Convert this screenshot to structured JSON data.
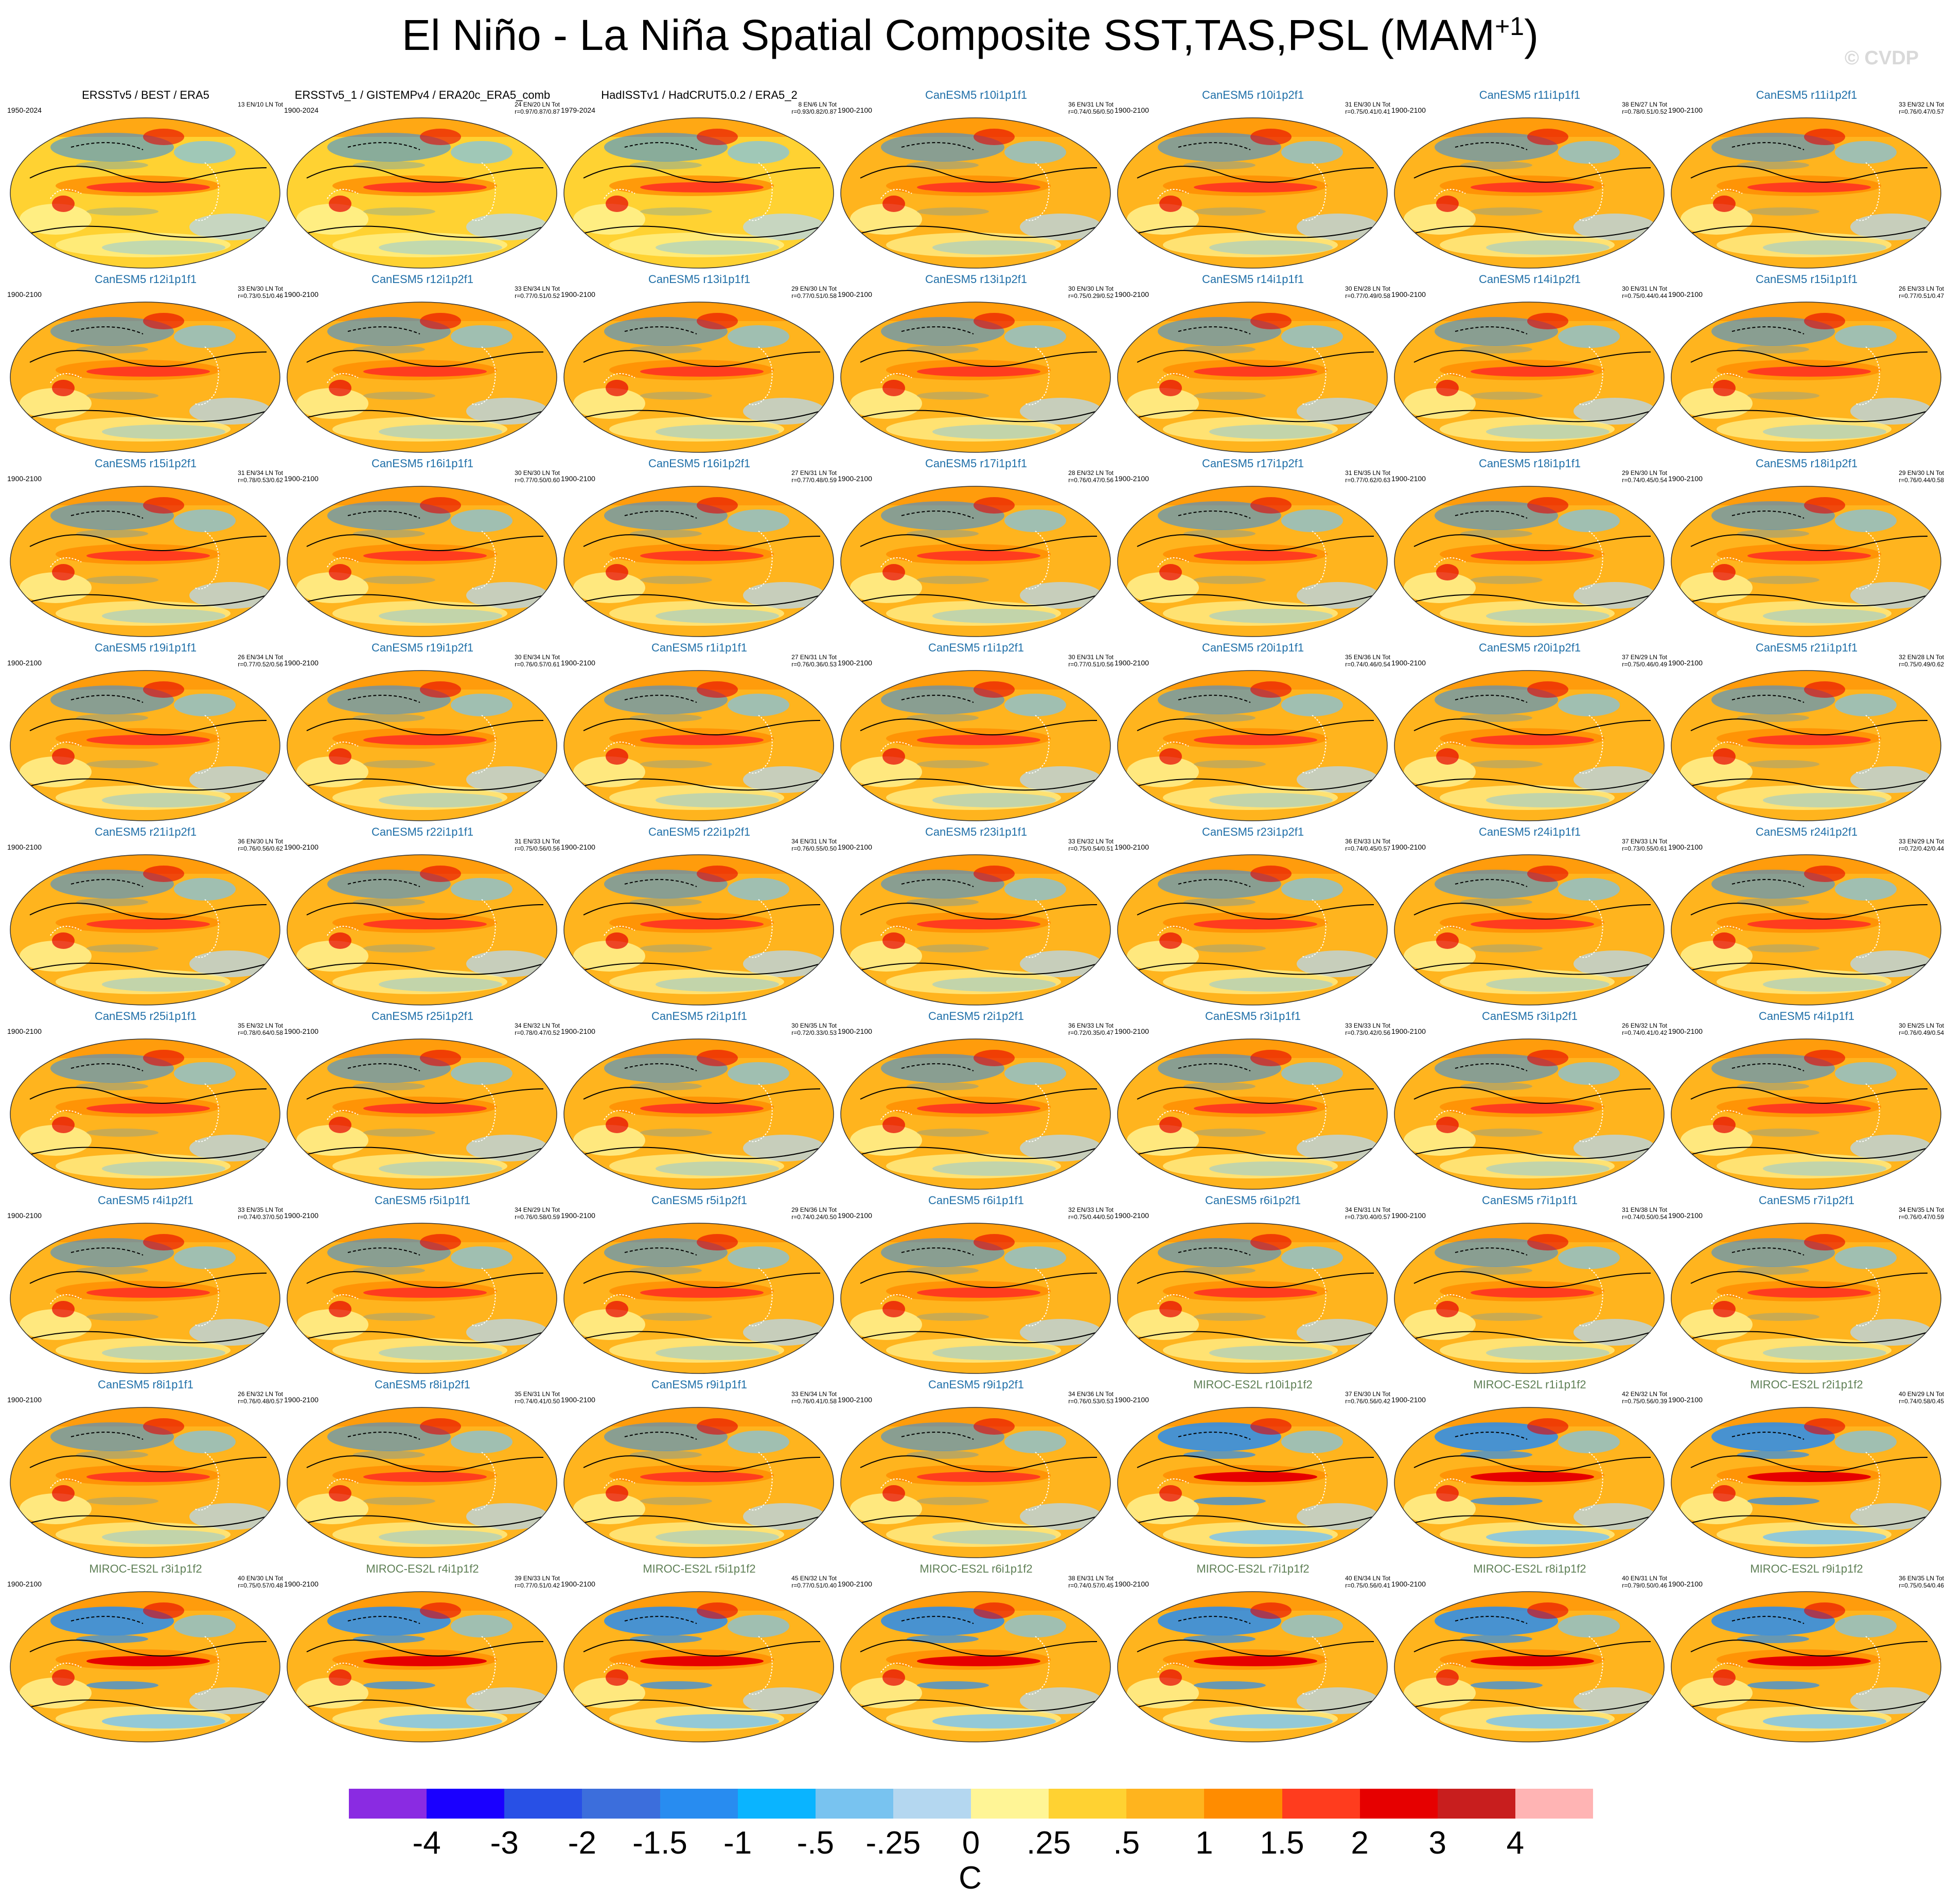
{
  "title": {
    "main": "El Niño - La Niña Spatial Composite SST,TAS,PSL (MAM",
    "sup": "+1",
    "end": ")"
  },
  "watermark": "© CVDP",
  "panels": [
    {
      "title": "ERSSTv5 / BEST / ERA5",
      "years": "1950-2024",
      "stats1": "13 EN/10 LN Tot",
      "stats2": "",
      "src": "obs"
    },
    {
      "title": "ERSSTv5_1 / GISTEMPv4 / ERA20c_ERA5_comb",
      "years": "1900-2024",
      "stats1": "24 EN/20 LN Tot",
      "stats2": "r=0.97/0.87/0.87",
      "src": "obs"
    },
    {
      "title": "HadISSTv1 / HadCRUT5.0.2 / ERA5_2",
      "years": "1979-2024",
      "stats1": "8 EN/6 LN Tot",
      "stats2": "r=0.93/0.82/0.87",
      "src": "obs"
    },
    {
      "title": "CanESM5 r10i1p1f1",
      "years": "1900-2100",
      "stats1": "36 EN/31 LN Tot",
      "stats2": "r=0.74/0.56/0.50",
      "src": "can"
    },
    {
      "title": "CanESM5 r10i1p2f1",
      "years": "1900-2100",
      "stats1": "31 EN/30 LN Tot",
      "stats2": "r=0.75/0.41/0.41",
      "src": "can"
    },
    {
      "title": "CanESM5 r11i1p1f1",
      "years": "1900-2100",
      "stats1": "38 EN/27 LN Tot",
      "stats2": "r=0.78/0.51/0.52",
      "src": "can"
    },
    {
      "title": "CanESM5 r11i1p2f1",
      "years": "1900-2100",
      "stats1": "33 EN/32 LN Tot",
      "stats2": "r=0.76/0.47/0.57",
      "src": "can"
    },
    {
      "title": "CanESM5 r12i1p1f1",
      "years": "1900-2100",
      "stats1": "33 EN/30 LN Tot",
      "stats2": "r=0.73/0.51/0.46",
      "src": "can"
    },
    {
      "title": "CanESM5 r12i1p2f1",
      "years": "1900-2100",
      "stats1": "33 EN/34 LN Tot",
      "stats2": "r=0.77/0.51/0.52",
      "src": "can"
    },
    {
      "title": "CanESM5 r13i1p1f1",
      "years": "1900-2100",
      "stats1": "29 EN/30 LN Tot",
      "stats2": "r=0.77/0.51/0.58",
      "src": "can"
    },
    {
      "title": "CanESM5 r13i1p2f1",
      "years": "1900-2100",
      "stats1": "30 EN/30 LN Tot",
      "stats2": "r=0.75/0.29/0.52",
      "src": "can"
    },
    {
      "title": "CanESM5 r14i1p1f1",
      "years": "1900-2100",
      "stats1": "30 EN/28 LN Tot",
      "stats2": "r=0.77/0.49/0.58",
      "src": "can"
    },
    {
      "title": "CanESM5 r14i1p2f1",
      "years": "1900-2100",
      "stats1": "30 EN/31 LN Tot",
      "stats2": "r=0.75/0.44/0.44",
      "src": "can"
    },
    {
      "title": "CanESM5 r15i1p1f1",
      "years": "1900-2100",
      "stats1": "26 EN/33 LN Tot",
      "stats2": "r=0.77/0.51/0.47",
      "src": "can"
    },
    {
      "title": "CanESM5 r15i1p2f1",
      "years": "1900-2100",
      "stats1": "31 EN/34 LN Tot",
      "stats2": "r=0.78/0.53/0.62",
      "src": "can"
    },
    {
      "title": "CanESM5 r16i1p1f1",
      "years": "1900-2100",
      "stats1": "30 EN/30 LN Tot",
      "stats2": "r=0.77/0.50/0.60",
      "src": "can"
    },
    {
      "title": "CanESM5 r16i1p2f1",
      "years": "1900-2100",
      "stats1": "27 EN/31 LN Tot",
      "stats2": "r=0.77/0.48/0.59",
      "src": "can"
    },
    {
      "title": "CanESM5 r17i1p1f1",
      "years": "1900-2100",
      "stats1": "28 EN/32 LN Tot",
      "stats2": "r=0.76/0.47/0.56",
      "src": "can"
    },
    {
      "title": "CanESM5 r17i1p2f1",
      "years": "1900-2100",
      "stats1": "31 EN/35 LN Tot",
      "stats2": "r=0.77/0.62/0.63",
      "src": "can"
    },
    {
      "title": "CanESM5 r18i1p1f1",
      "years": "1900-2100",
      "stats1": "29 EN/30 LN Tot",
      "stats2": "r=0.74/0.45/0.54",
      "src": "can"
    },
    {
      "title": "CanESM5 r18i1p2f1",
      "years": "1900-2100",
      "stats1": "29 EN/30 LN Tot",
      "stats2": "r=0.76/0.44/0.58",
      "src": "can"
    },
    {
      "title": "CanESM5 r19i1p1f1",
      "years": "1900-2100",
      "stats1": "26 EN/34 LN Tot",
      "stats2": "r=0.77/0.52/0.56",
      "src": "can"
    },
    {
      "title": "CanESM5 r19i1p2f1",
      "years": "1900-2100",
      "stats1": "30 EN/34 LN Tot",
      "stats2": "r=0.76/0.57/0.61",
      "src": "can"
    },
    {
      "title": "CanESM5 r1i1p1f1",
      "years": "1900-2100",
      "stats1": "27 EN/31 LN Tot",
      "stats2": "r=0.76/0.36/0.53",
      "src": "can"
    },
    {
      "title": "CanESM5 r1i1p2f1",
      "years": "1900-2100",
      "stats1": "30 EN/31 LN Tot",
      "stats2": "r=0.77/0.51/0.56",
      "src": "can"
    },
    {
      "title": "CanESM5 r20i1p1f1",
      "years": "1900-2100",
      "stats1": "35 EN/36 LN Tot",
      "stats2": "r=0.74/0.46/0.54",
      "src": "can"
    },
    {
      "title": "CanESM5 r20i1p2f1",
      "years": "1900-2100",
      "stats1": "37 EN/29 LN Tot",
      "stats2": "r=0.75/0.46/0.49",
      "src": "can"
    },
    {
      "title": "CanESM5 r21i1p1f1",
      "years": "1900-2100",
      "stats1": "32 EN/28 LN Tot",
      "stats2": "r=0.75/0.49/0.62",
      "src": "can"
    },
    {
      "title": "CanESM5 r21i1p2f1",
      "years": "1900-2100",
      "stats1": "36 EN/30 LN Tot",
      "stats2": "r=0.76/0.56/0.62",
      "src": "can"
    },
    {
      "title": "CanESM5 r22i1p1f1",
      "years": "1900-2100",
      "stats1": "31 EN/33 LN Tot",
      "stats2": "r=0.75/0.56/0.56",
      "src": "can"
    },
    {
      "title": "CanESM5 r22i1p2f1",
      "years": "1900-2100",
      "stats1": "34 EN/31 LN Tot",
      "stats2": "r=0.76/0.55/0.50",
      "src": "can"
    },
    {
      "title": "CanESM5 r23i1p1f1",
      "years": "1900-2100",
      "stats1": "33 EN/32 LN Tot",
      "stats2": "r=0.75/0.54/0.51",
      "src": "can"
    },
    {
      "title": "CanESM5 r23i1p2f1",
      "years": "1900-2100",
      "stats1": "36 EN/33 LN Tot",
      "stats2": "r=0.74/0.45/0.57",
      "src": "can"
    },
    {
      "title": "CanESM5 r24i1p1f1",
      "years": "1900-2100",
      "stats1": "37 EN/33 LN Tot",
      "stats2": "r=0.73/0.55/0.61",
      "src": "can"
    },
    {
      "title": "CanESM5 r24i1p2f1",
      "years": "1900-2100",
      "stats1": "33 EN/29 LN Tot",
      "stats2": "r=0.72/0.42/0.44",
      "src": "can"
    },
    {
      "title": "CanESM5 r25i1p1f1",
      "years": "1900-2100",
      "stats1": "35 EN/32 LN Tot",
      "stats2": "r=0.78/0.64/0.58",
      "src": "can"
    },
    {
      "title": "CanESM5 r25i1p2f1",
      "years": "1900-2100",
      "stats1": "34 EN/32 LN Tot",
      "stats2": "r=0.78/0.47/0.52",
      "src": "can"
    },
    {
      "title": "CanESM5 r2i1p1f1",
      "years": "1900-2100",
      "stats1": "30 EN/35 LN Tot",
      "stats2": "r=0.72/0.33/0.53",
      "src": "can"
    },
    {
      "title": "CanESM5 r2i1p2f1",
      "years": "1900-2100",
      "stats1": "36 EN/33 LN Tot",
      "stats2": "r=0.72/0.35/0.47",
      "src": "can"
    },
    {
      "title": "CanESM5 r3i1p1f1",
      "years": "1900-2100",
      "stats1": "33 EN/33 LN Tot",
      "stats2": "r=0.73/0.42/0.56",
      "src": "can"
    },
    {
      "title": "CanESM5 r3i1p2f1",
      "years": "1900-2100",
      "stats1": "26 EN/32 LN Tot",
      "stats2": "r=0.74/0.41/0.42",
      "src": "can"
    },
    {
      "title": "CanESM5 r4i1p1f1",
      "years": "1900-2100",
      "stats1": "30 EN/25 LN Tot",
      "stats2": "r=0.76/0.49/0.54",
      "src": "can"
    },
    {
      "title": "CanESM5 r4i1p2f1",
      "years": "1900-2100",
      "stats1": "33 EN/35 LN Tot",
      "stats2": "r=0.74/0.37/0.50",
      "src": "can"
    },
    {
      "title": "CanESM5 r5i1p1f1",
      "years": "1900-2100",
      "stats1": "34 EN/29 LN Tot",
      "stats2": "r=0.76/0.58/0.59",
      "src": "can"
    },
    {
      "title": "CanESM5 r5i1p2f1",
      "years": "1900-2100",
      "stats1": "29 EN/36 LN Tot",
      "stats2": "r=0.74/0.24/0.50",
      "src": "can"
    },
    {
      "title": "CanESM5 r6i1p1f1",
      "years": "1900-2100",
      "stats1": "32 EN/33 LN Tot",
      "stats2": "r=0.75/0.44/0.50",
      "src": "can"
    },
    {
      "title": "CanESM5 r6i1p2f1",
      "years": "1900-2100",
      "stats1": "34 EN/31 LN Tot",
      "stats2": "r=0.73/0.40/0.57",
      "src": "can"
    },
    {
      "title": "CanESM5 r7i1p1f1",
      "years": "1900-2100",
      "stats1": "31 EN/38 LN Tot",
      "stats2": "r=0.74/0.50/0.54",
      "src": "can"
    },
    {
      "title": "CanESM5 r7i1p2f1",
      "years": "1900-2100",
      "stats1": "34 EN/35 LN Tot",
      "stats2": "r=0.76/0.47/0.59",
      "src": "can"
    },
    {
      "title": "CanESM5 r8i1p1f1",
      "years": "1900-2100",
      "stats1": "26 EN/32 LN Tot",
      "stats2": "r=0.76/0.48/0.57",
      "src": "can"
    },
    {
      "title": "CanESM5 r8i1p2f1",
      "years": "1900-2100",
      "stats1": "35 EN/31 LN Tot",
      "stats2": "r=0.74/0.41/0.50",
      "src": "can"
    },
    {
      "title": "CanESM5 r9i1p1f1",
      "years": "1900-2100",
      "stats1": "33 EN/34 LN Tot",
      "stats2": "r=0.76/0.41/0.58",
      "src": "can"
    },
    {
      "title": "CanESM5 r9i1p2f1",
      "years": "1900-2100",
      "stats1": "34 EN/36 LN Tot",
      "stats2": "r=0.76/0.53/0.53",
      "src": "can"
    },
    {
      "title": "MIROC-ES2L r10i1p1f2",
      "years": "1900-2100",
      "stats1": "37 EN/30 LN Tot",
      "stats2": "r=0.76/0.56/0.42",
      "src": "mir"
    },
    {
      "title": "MIROC-ES2L r1i1p1f2",
      "years": "1900-2100",
      "stats1": "42 EN/32 LN Tot",
      "stats2": "r=0.75/0.56/0.39",
      "src": "mir"
    },
    {
      "title": "MIROC-ES2L r2i1p1f2",
      "years": "1900-2100",
      "stats1": "40 EN/29 LN Tot",
      "stats2": "r=0.74/0.58/0.45",
      "src": "mir"
    },
    {
      "title": "MIROC-ES2L r3i1p1f2",
      "years": "1900-2100",
      "stats1": "40 EN/30 LN Tot",
      "stats2": "r=0.75/0.57/0.48",
      "src": "mir"
    },
    {
      "title": "MIROC-ES2L r4i1p1f2",
      "years": "1900-2100",
      "stats1": "39 EN/33 LN Tot",
      "stats2": "r=0.77/0.51/0.42",
      "src": "mir"
    },
    {
      "title": "MIROC-ES2L r5i1p1f2",
      "years": "1900-2100",
      "stats1": "45 EN/32 LN Tot",
      "stats2": "r=0.77/0.51/0.40",
      "src": "mir"
    },
    {
      "title": "MIROC-ES2L r6i1p1f2",
      "years": "1900-2100",
      "stats1": "38 EN/31 LN Tot",
      "stats2": "r=0.74/0.57/0.45",
      "src": "mir"
    },
    {
      "title": "MIROC-ES2L r7i1p1f2",
      "years": "1900-2100",
      "stats1": "40 EN/34 LN Tot",
      "stats2": "r=0.75/0.56/0.41",
      "src": "mir"
    },
    {
      "title": "MIROC-ES2L r8i1p1f2",
      "years": "1900-2100",
      "stats1": "40 EN/31 LN Tot",
      "stats2": "r=0.79/0.50/0.46",
      "src": "mir"
    },
    {
      "title": "MIROC-ES2L r9i1p1f2",
      "years": "1900-2100",
      "stats1": "36 EN/35 LN Tot",
      "stats2": "r=0.75/0.54/0.46",
      "src": "mir"
    }
  ],
  "colorbar": {
    "colors": [
      "#8a2be2",
      "#1a00ff",
      "#2850e6",
      "#3c6edc",
      "#288cf0",
      "#0ab4ff",
      "#78c3f0",
      "#b4d7f0",
      "#fff596",
      "#ffd232",
      "#ffb41e",
      "#ff8c00",
      "#ff3c1e",
      "#e60000",
      "#c81e1e",
      "#ffb4b4"
    ],
    "labels": [
      "-4",
      "-3",
      "-2",
      "-1.5",
      "-1",
      "-.5",
      "-.25",
      "0",
      ".25",
      ".5",
      "1",
      "1.5",
      "2",
      "3",
      "4"
    ],
    "unit": "C"
  }
}
